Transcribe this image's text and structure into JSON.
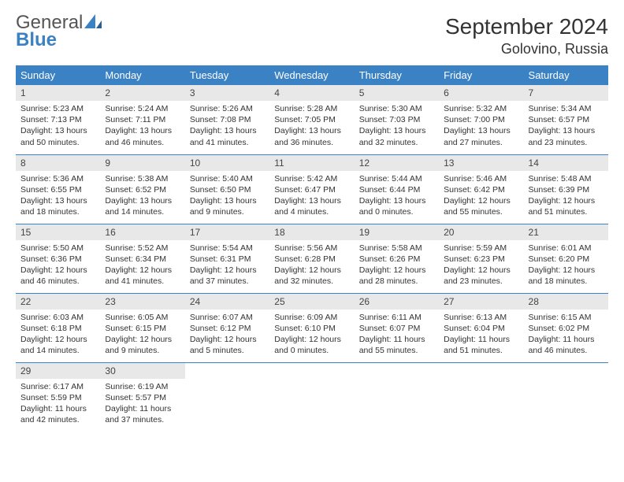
{
  "logo": {
    "line1": "General",
    "line2": "Blue"
  },
  "title": "September 2024",
  "location": "Golovino, Russia",
  "header_bg": "#3b82c4",
  "weekdays": [
    "Sunday",
    "Monday",
    "Tuesday",
    "Wednesday",
    "Thursday",
    "Friday",
    "Saturday"
  ],
  "days": [
    {
      "n": "1",
      "sr": "Sunrise: 5:23 AM",
      "ss": "Sunset: 7:13 PM",
      "dl": "Daylight: 13 hours and 50 minutes."
    },
    {
      "n": "2",
      "sr": "Sunrise: 5:24 AM",
      "ss": "Sunset: 7:11 PM",
      "dl": "Daylight: 13 hours and 46 minutes."
    },
    {
      "n": "3",
      "sr": "Sunrise: 5:26 AM",
      "ss": "Sunset: 7:08 PM",
      "dl": "Daylight: 13 hours and 41 minutes."
    },
    {
      "n": "4",
      "sr": "Sunrise: 5:28 AM",
      "ss": "Sunset: 7:05 PM",
      "dl": "Daylight: 13 hours and 36 minutes."
    },
    {
      "n": "5",
      "sr": "Sunrise: 5:30 AM",
      "ss": "Sunset: 7:03 PM",
      "dl": "Daylight: 13 hours and 32 minutes."
    },
    {
      "n": "6",
      "sr": "Sunrise: 5:32 AM",
      "ss": "Sunset: 7:00 PM",
      "dl": "Daylight: 13 hours and 27 minutes."
    },
    {
      "n": "7",
      "sr": "Sunrise: 5:34 AM",
      "ss": "Sunset: 6:57 PM",
      "dl": "Daylight: 13 hours and 23 minutes."
    },
    {
      "n": "8",
      "sr": "Sunrise: 5:36 AM",
      "ss": "Sunset: 6:55 PM",
      "dl": "Daylight: 13 hours and 18 minutes."
    },
    {
      "n": "9",
      "sr": "Sunrise: 5:38 AM",
      "ss": "Sunset: 6:52 PM",
      "dl": "Daylight: 13 hours and 14 minutes."
    },
    {
      "n": "10",
      "sr": "Sunrise: 5:40 AM",
      "ss": "Sunset: 6:50 PM",
      "dl": "Daylight: 13 hours and 9 minutes."
    },
    {
      "n": "11",
      "sr": "Sunrise: 5:42 AM",
      "ss": "Sunset: 6:47 PM",
      "dl": "Daylight: 13 hours and 4 minutes."
    },
    {
      "n": "12",
      "sr": "Sunrise: 5:44 AM",
      "ss": "Sunset: 6:44 PM",
      "dl": "Daylight: 13 hours and 0 minutes."
    },
    {
      "n": "13",
      "sr": "Sunrise: 5:46 AM",
      "ss": "Sunset: 6:42 PM",
      "dl": "Daylight: 12 hours and 55 minutes."
    },
    {
      "n": "14",
      "sr": "Sunrise: 5:48 AM",
      "ss": "Sunset: 6:39 PM",
      "dl": "Daylight: 12 hours and 51 minutes."
    },
    {
      "n": "15",
      "sr": "Sunrise: 5:50 AM",
      "ss": "Sunset: 6:36 PM",
      "dl": "Daylight: 12 hours and 46 minutes."
    },
    {
      "n": "16",
      "sr": "Sunrise: 5:52 AM",
      "ss": "Sunset: 6:34 PM",
      "dl": "Daylight: 12 hours and 41 minutes."
    },
    {
      "n": "17",
      "sr": "Sunrise: 5:54 AM",
      "ss": "Sunset: 6:31 PM",
      "dl": "Daylight: 12 hours and 37 minutes."
    },
    {
      "n": "18",
      "sr": "Sunrise: 5:56 AM",
      "ss": "Sunset: 6:28 PM",
      "dl": "Daylight: 12 hours and 32 minutes."
    },
    {
      "n": "19",
      "sr": "Sunrise: 5:58 AM",
      "ss": "Sunset: 6:26 PM",
      "dl": "Daylight: 12 hours and 28 minutes."
    },
    {
      "n": "20",
      "sr": "Sunrise: 5:59 AM",
      "ss": "Sunset: 6:23 PM",
      "dl": "Daylight: 12 hours and 23 minutes."
    },
    {
      "n": "21",
      "sr": "Sunrise: 6:01 AM",
      "ss": "Sunset: 6:20 PM",
      "dl": "Daylight: 12 hours and 18 minutes."
    },
    {
      "n": "22",
      "sr": "Sunrise: 6:03 AM",
      "ss": "Sunset: 6:18 PM",
      "dl": "Daylight: 12 hours and 14 minutes."
    },
    {
      "n": "23",
      "sr": "Sunrise: 6:05 AM",
      "ss": "Sunset: 6:15 PM",
      "dl": "Daylight: 12 hours and 9 minutes."
    },
    {
      "n": "24",
      "sr": "Sunrise: 6:07 AM",
      "ss": "Sunset: 6:12 PM",
      "dl": "Daylight: 12 hours and 5 minutes."
    },
    {
      "n": "25",
      "sr": "Sunrise: 6:09 AM",
      "ss": "Sunset: 6:10 PM",
      "dl": "Daylight: 12 hours and 0 minutes."
    },
    {
      "n": "26",
      "sr": "Sunrise: 6:11 AM",
      "ss": "Sunset: 6:07 PM",
      "dl": "Daylight: 11 hours and 55 minutes."
    },
    {
      "n": "27",
      "sr": "Sunrise: 6:13 AM",
      "ss": "Sunset: 6:04 PM",
      "dl": "Daylight: 11 hours and 51 minutes."
    },
    {
      "n": "28",
      "sr": "Sunrise: 6:15 AM",
      "ss": "Sunset: 6:02 PM",
      "dl": "Daylight: 11 hours and 46 minutes."
    },
    {
      "n": "29",
      "sr": "Sunrise: 6:17 AM",
      "ss": "Sunset: 5:59 PM",
      "dl": "Daylight: 11 hours and 42 minutes."
    },
    {
      "n": "30",
      "sr": "Sunrise: 6:19 AM",
      "ss": "Sunset: 5:57 PM",
      "dl": "Daylight: 11 hours and 37 minutes."
    }
  ]
}
